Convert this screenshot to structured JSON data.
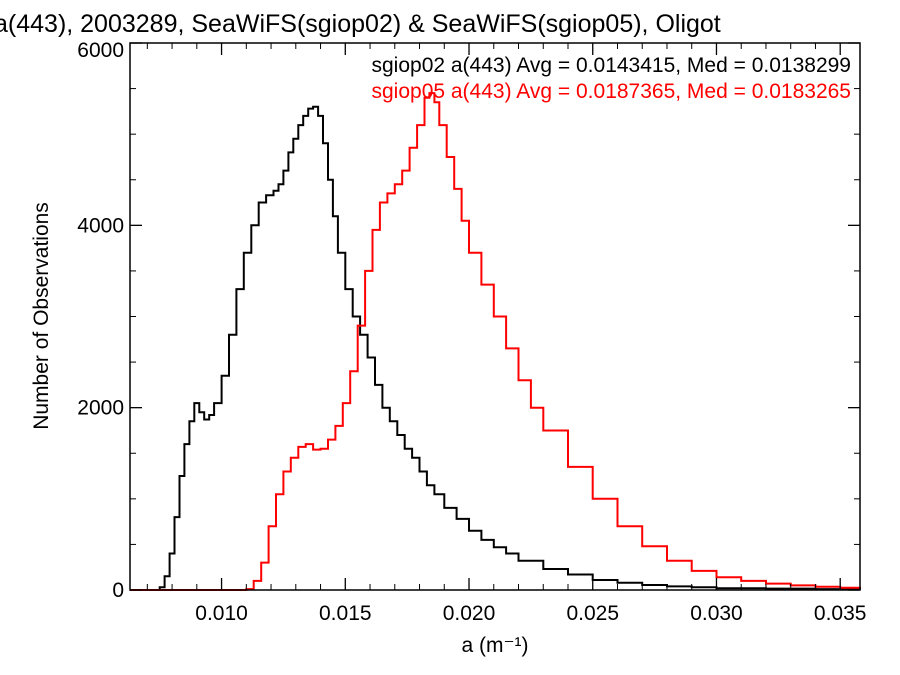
{
  "chart_data": {
    "type": "line",
    "title": "a(443), 2003289, SeaWiFS(sgiop02) & SeaWiFS(sgiop05), Oligot",
    "xlabel": "a (m⁻¹)",
    "ylabel": "Number of Observations",
    "xlim": [
      0.0063,
      0.0358
    ],
    "ylim": [
      0,
      6000
    ],
    "xticks": [
      "0.010",
      "0.015",
      "0.020",
      "0.025",
      "0.030",
      "0.035"
    ],
    "xtick_values": [
      0.01,
      0.015,
      0.02,
      0.025,
      0.03,
      0.035
    ],
    "yticks": [
      "0",
      "2000",
      "4000",
      "6000"
    ],
    "ytick_values": [
      0,
      2000,
      4000,
      6000
    ],
    "grid": false,
    "step": true,
    "annotations": [
      {
        "text": "sgiop02 a(443) Avg = 0.0143415, Med = 0.0138299",
        "color": "#000000"
      },
      {
        "text": "sgiop05 a(443) Avg = 0.0187365, Med = 0.0183265",
        "color": "#ff0000"
      }
    ],
    "series": [
      {
        "color": "#000000",
        "x": [
          0.0063,
          0.007,
          0.0073,
          0.0075,
          0.0077,
          0.0079,
          0.0081,
          0.0083,
          0.0085,
          0.0087,
          0.0089,
          0.0091,
          0.0093,
          0.0095,
          0.0097,
          0.01,
          0.0103,
          0.0106,
          0.0109,
          0.0112,
          0.0115,
          0.0118,
          0.0121,
          0.0123,
          0.0125,
          0.0127,
          0.0129,
          0.0131,
          0.0133,
          0.0135,
          0.0137,
          0.0139,
          0.0141,
          0.0143,
          0.0145,
          0.0147,
          0.015,
          0.0153,
          0.0156,
          0.0159,
          0.0162,
          0.0165,
          0.0168,
          0.0171,
          0.0174,
          0.0177,
          0.018,
          0.0183,
          0.0186,
          0.019,
          0.0195,
          0.02,
          0.0205,
          0.021,
          0.0215,
          0.022,
          0.023,
          0.024,
          0.025,
          0.026,
          0.027,
          0.028,
          0.029,
          0.03,
          0.032,
          0.034,
          0.0358
        ],
        "y": [
          0,
          0,
          0,
          30,
          150,
          400,
          800,
          1250,
          1600,
          1850,
          2050,
          1950,
          1870,
          1920,
          2050,
          2350,
          2800,
          3300,
          3700,
          4000,
          4250,
          4330,
          4380,
          4450,
          4600,
          4800,
          4950,
          5100,
          5200,
          5280,
          5300,
          5200,
          4900,
          4500,
          4100,
          3700,
          3300,
          3000,
          2800,
          2550,
          2250,
          2000,
          1850,
          1700,
          1550,
          1450,
          1300,
          1150,
          1050,
          900,
          780,
          650,
          550,
          470,
          400,
          320,
          230,
          170,
          110,
          80,
          55,
          40,
          30,
          20,
          15,
          10,
          5
        ]
      },
      {
        "color": "#ff0000",
        "x": [
          0.0063,
          0.0105,
          0.011,
          0.0113,
          0.0116,
          0.0119,
          0.0122,
          0.0125,
          0.0128,
          0.0131,
          0.0134,
          0.0137,
          0.014,
          0.0143,
          0.0146,
          0.0149,
          0.0152,
          0.0155,
          0.0158,
          0.0161,
          0.0164,
          0.0167,
          0.017,
          0.0173,
          0.0176,
          0.0179,
          0.0182,
          0.0184,
          0.0186,
          0.0188,
          0.0191,
          0.0194,
          0.0197,
          0.02,
          0.0205,
          0.021,
          0.0215,
          0.022,
          0.0225,
          0.023,
          0.024,
          0.025,
          0.026,
          0.027,
          0.028,
          0.029,
          0.03,
          0.031,
          0.032,
          0.033,
          0.034,
          0.035,
          0.0358
        ],
        "y": [
          0,
          0,
          10,
          100,
          300,
          700,
          1050,
          1300,
          1450,
          1570,
          1600,
          1540,
          1550,
          1650,
          1800,
          2050,
          2400,
          2900,
          3500,
          3950,
          4250,
          4350,
          4450,
          4600,
          4850,
          5100,
          5400,
          5450,
          5350,
          5100,
          4750,
          4400,
          4050,
          3700,
          3350,
          3000,
          2650,
          2300,
          2000,
          1750,
          1350,
          1000,
          700,
          480,
          320,
          210,
          140,
          100,
          70,
          50,
          35,
          25,
          20
        ]
      }
    ]
  }
}
